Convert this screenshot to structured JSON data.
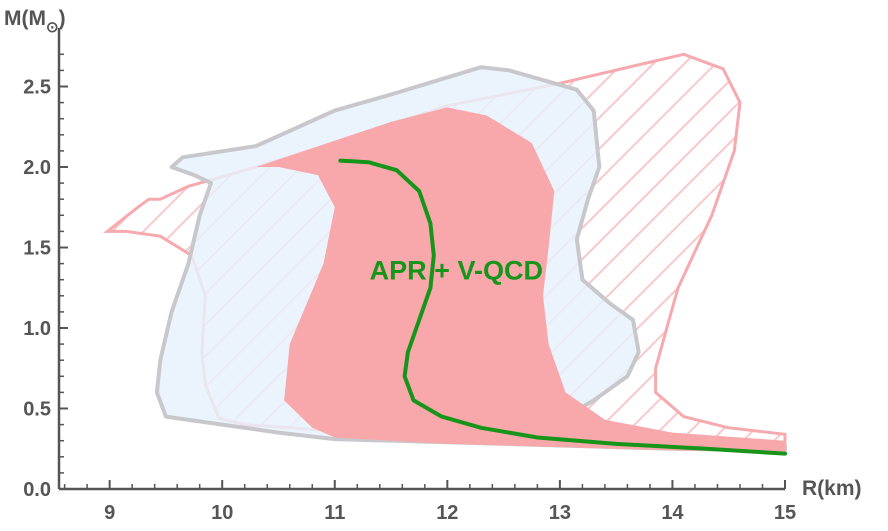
{
  "chart_data": {
    "type": "area",
    "title": "",
    "xlabel": "R(km)",
    "ylabel": "M(M",
    "ylabel_subscript": "⊙",
    "xlim": [
      8.55,
      15
    ],
    "ylim": [
      0,
      2.75
    ],
    "x_ticks": [
      "9",
      "10",
      "11",
      "12",
      "13",
      "14",
      "15"
    ],
    "x_tick_values": [
      9,
      10,
      11,
      12,
      13,
      14,
      15
    ],
    "y_ticks": [
      "0.0",
      "0.5",
      "1.0",
      "1.5",
      "2.0",
      "2.5"
    ],
    "y_tick_values": [
      0,
      0.5,
      1.0,
      1.5,
      2.0,
      2.5
    ],
    "grid": false,
    "annotation": {
      "text": "APR + V-QCD",
      "x": 12.08,
      "y": 1.3,
      "color": "#17951a"
    },
    "colors": {
      "hatched_region": "#f6a9ae",
      "blue_region_fill": "#e6f1fc",
      "blue_region_edge": "#c8c8cc",
      "red_region": "#f8a7ab",
      "apr_curve": "#17951a",
      "axis": "#555555"
    },
    "regions": [
      {
        "style": "hatched",
        "points": [
          [
            8.98,
            1.6
          ],
          [
            9.25,
            1.75
          ],
          [
            9.35,
            1.8
          ],
          [
            9.45,
            1.8
          ],
          [
            9.7,
            1.88
          ],
          [
            9.9,
            1.92
          ],
          [
            10.3,
            2.0
          ],
          [
            11.0,
            2.15
          ],
          [
            12.0,
            2.38
          ],
          [
            13.0,
            2.52
          ],
          [
            14.1,
            2.7
          ],
          [
            14.45,
            2.61
          ],
          [
            14.6,
            2.4
          ],
          [
            14.55,
            2.1
          ],
          [
            14.35,
            1.7
          ],
          [
            14.05,
            1.25
          ],
          [
            13.95,
            1.0
          ],
          [
            13.85,
            0.75
          ],
          [
            13.85,
            0.6
          ],
          [
            14.1,
            0.45
          ],
          [
            14.5,
            0.38
          ],
          [
            15.0,
            0.34
          ],
          [
            15.0,
            0.28
          ],
          [
            14.0,
            0.3
          ],
          [
            13.0,
            0.31
          ],
          [
            12.0,
            0.33
          ],
          [
            11.0,
            0.36
          ],
          [
            10.2,
            0.4
          ],
          [
            9.97,
            0.44
          ],
          [
            9.85,
            0.65
          ],
          [
            9.82,
            0.85
          ],
          [
            9.85,
            1.2
          ],
          [
            9.73,
            1.45
          ],
          [
            9.45,
            1.57
          ],
          [
            9.15,
            1.6
          ]
        ]
      },
      {
        "style": "blue",
        "points": [
          [
            9.55,
            2.0
          ],
          [
            9.65,
            2.06
          ],
          [
            10.3,
            2.13
          ],
          [
            11.0,
            2.35
          ],
          [
            11.5,
            2.45
          ],
          [
            12.3,
            2.62
          ],
          [
            12.55,
            2.6
          ],
          [
            13.15,
            2.48
          ],
          [
            13.3,
            2.35
          ],
          [
            13.35,
            2.0
          ],
          [
            13.25,
            1.8
          ],
          [
            13.15,
            1.55
          ],
          [
            13.2,
            1.3
          ],
          [
            13.45,
            1.15
          ],
          [
            13.65,
            1.05
          ],
          [
            13.7,
            0.85
          ],
          [
            13.6,
            0.7
          ],
          [
            13.3,
            0.55
          ],
          [
            13.05,
            0.45
          ],
          [
            13.0,
            0.38
          ],
          [
            13.5,
            0.34
          ],
          [
            14.0,
            0.3
          ],
          [
            15.0,
            0.27
          ],
          [
            15.0,
            0.24
          ],
          [
            14.0,
            0.25
          ],
          [
            13.0,
            0.27
          ],
          [
            12.0,
            0.29
          ],
          [
            11.0,
            0.31
          ],
          [
            10.5,
            0.35
          ],
          [
            10.0,
            0.4
          ],
          [
            9.5,
            0.45
          ],
          [
            9.42,
            0.6
          ],
          [
            9.45,
            0.8
          ],
          [
            9.55,
            1.1
          ],
          [
            9.7,
            1.4
          ],
          [
            9.8,
            1.7
          ],
          [
            9.9,
            1.9
          ],
          [
            9.75,
            1.95
          ]
        ]
      },
      {
        "style": "red",
        "points": [
          [
            10.3,
            2.0
          ],
          [
            11.5,
            2.28
          ],
          [
            12.0,
            2.37
          ],
          [
            12.35,
            2.32
          ],
          [
            12.75,
            2.15
          ],
          [
            12.95,
            1.85
          ],
          [
            12.9,
            1.5
          ],
          [
            12.85,
            1.2
          ],
          [
            12.9,
            0.9
          ],
          [
            13.05,
            0.6
          ],
          [
            13.4,
            0.43
          ],
          [
            14.0,
            0.35
          ],
          [
            15.0,
            0.3
          ],
          [
            15.0,
            0.23
          ],
          [
            14.0,
            0.24
          ],
          [
            13.0,
            0.26
          ],
          [
            12.0,
            0.28
          ],
          [
            11.5,
            0.3
          ],
          [
            11.0,
            0.32
          ],
          [
            10.8,
            0.38
          ],
          [
            10.55,
            0.55
          ],
          [
            10.6,
            0.9
          ],
          [
            10.9,
            1.4
          ],
          [
            11.0,
            1.75
          ],
          [
            10.85,
            1.95
          ],
          [
            10.5,
            2.0
          ]
        ]
      }
    ],
    "series": [
      {
        "name": "APR + V-QCD",
        "x": [
          11.05,
          11.3,
          11.55,
          11.75,
          11.85,
          11.88,
          11.85,
          11.75,
          11.65,
          11.62,
          11.7,
          11.95,
          12.3,
          12.8,
          13.5,
          14.3,
          15.0
        ],
        "y": [
          2.04,
          2.03,
          1.98,
          1.85,
          1.65,
          1.45,
          1.25,
          1.05,
          0.85,
          0.7,
          0.55,
          0.45,
          0.38,
          0.32,
          0.28,
          0.25,
          0.22
        ]
      }
    ]
  }
}
